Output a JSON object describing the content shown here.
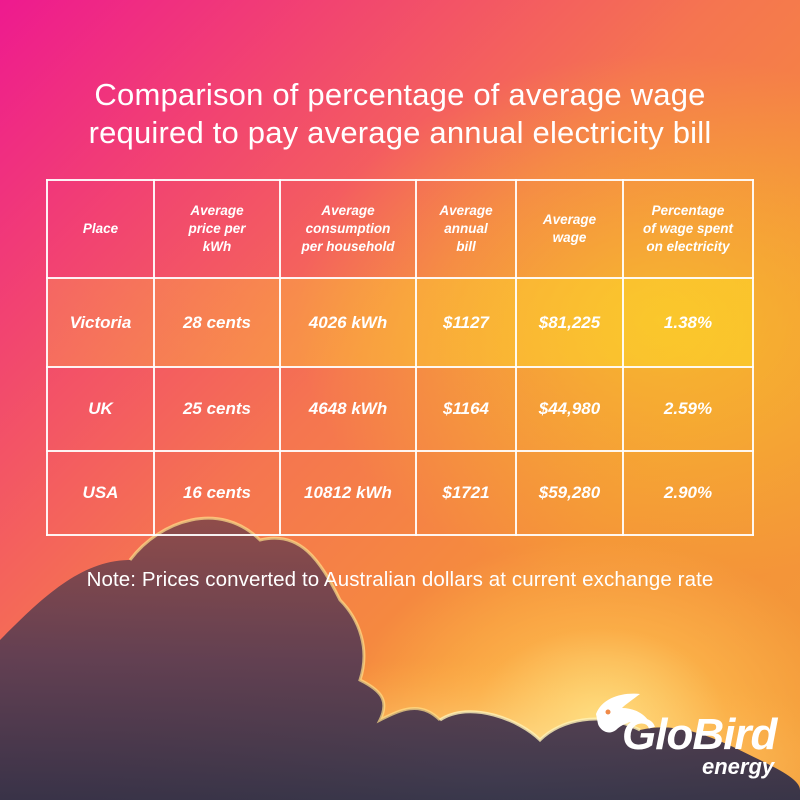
{
  "title": {
    "line1": "Comparison of percentage of average wage",
    "line2": "required to pay average annual electricity bill"
  },
  "table": {
    "headers": [
      [
        "Place"
      ],
      [
        "Average",
        "price per",
        "kWh"
      ],
      [
        "Average",
        "consumption",
        "per household"
      ],
      [
        "Average",
        "annual",
        "bill"
      ],
      [
        "Average",
        "wage"
      ],
      [
        "Percentage",
        "of wage spent",
        "on electricity"
      ]
    ],
    "rows": [
      [
        "Victoria",
        "28 cents",
        "4026 kWh",
        "$1127",
        "$81,225",
        "1.38%"
      ],
      [
        "UK",
        "25 cents",
        "4648 kWh",
        "$1164",
        "$44,980",
        "2.59%"
      ],
      [
        "USA",
        "16 cents",
        "10812 kWh",
        "$1721",
        "$59,280",
        "2.90%"
      ]
    ]
  },
  "note": "Note: Prices converted to Australian dollars at current exchange rate",
  "logo": {
    "brand": "GloBird",
    "sub": "energy",
    "icon": "bird-icon"
  },
  "colors": {
    "top_left": "#ee1a8f",
    "mid": "#f57550",
    "bottom_right": "#f29a38",
    "highlight": "#f6c628",
    "text": "#ffffff"
  }
}
